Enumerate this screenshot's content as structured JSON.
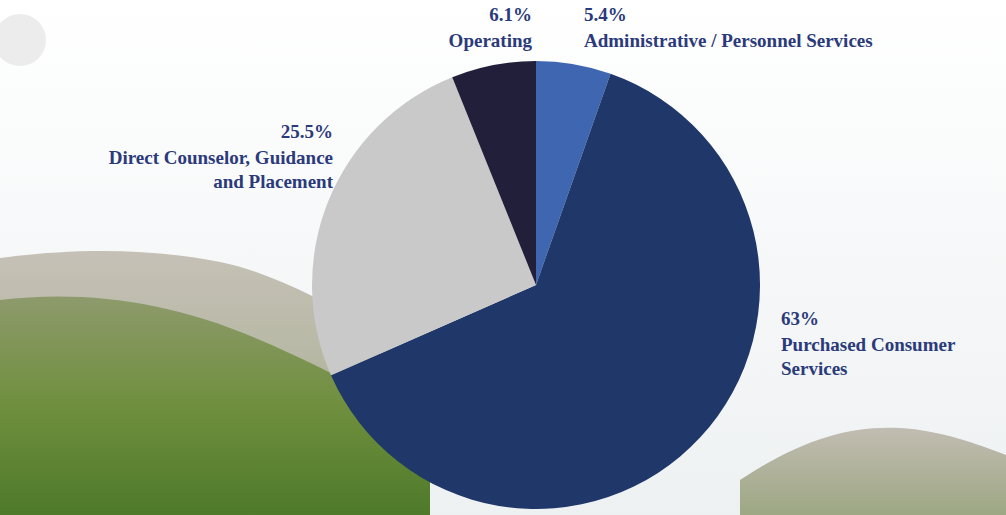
{
  "chart_data": {
    "type": "pie",
    "categories": [
      "Administrative / Personnel Services",
      "Purchased Consumer Services",
      "Direct Counselor, Guidance and Placement",
      "Operating"
    ],
    "values": [
      5.4,
      63,
      25.5,
      6.1
    ],
    "value_labels": [
      "5.4%",
      "63%",
      "25.5%",
      "6.1%"
    ],
    "colors": [
      "#3f67b1",
      "#1f3769",
      "#c9c9c9",
      "#221f3b"
    ],
    "data_labels": true
  }
}
